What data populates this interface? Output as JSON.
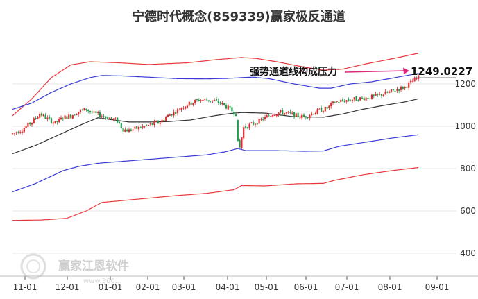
{
  "chart_data": {
    "type": "candlestick",
    "title": "宁德时代概念(859339)赢家极反通道",
    "y_ticks": [
      400,
      600,
      800,
      1000,
      1200
    ],
    "ylim": [
      380,
      1370
    ],
    "x_ticks": [
      "11-01",
      "12-01",
      "01-01",
      "02-01",
      "03-01",
      "04-01",
      "05-01",
      "06-01",
      "07-01",
      "08-01",
      "09-01"
    ],
    "grid": true,
    "annotation": {
      "text": "强势通道线构成压力",
      "last_value": "1249.0227"
    },
    "watermark": {
      "text": "赢家江恩软件",
      "url": "www.360..."
    },
    "colors": {
      "up": "#e0292b",
      "down": "#1f9a4c",
      "outer_band": "#e8373b",
      "inner_band": "#3a3ad6",
      "mid_line": "#333333",
      "arrow": "#e0287a",
      "grid": "#e6e6e6"
    },
    "price_anchors": [
      [
        0,
        965
      ],
      [
        5,
        985
      ],
      [
        10,
        1020
      ],
      [
        14,
        1060
      ],
      [
        18,
        1035
      ],
      [
        22,
        1015
      ],
      [
        26,
        1040
      ],
      [
        30,
        1050
      ],
      [
        34,
        1070
      ],
      [
        38,
        1080
      ],
      [
        42,
        1060
      ],
      [
        46,
        1050
      ],
      [
        50,
        1040
      ],
      [
        54,
        1025
      ],
      [
        57,
        985
      ],
      [
        60,
        980
      ],
      [
        64,
        990
      ],
      [
        68,
        1000
      ],
      [
        72,
        1010
      ],
      [
        76,
        1020
      ],
      [
        80,
        1050
      ],
      [
        84,
        1070
      ],
      [
        88,
        1095
      ],
      [
        92,
        1110
      ],
      [
        96,
        1125
      ],
      [
        100,
        1125
      ],
      [
        104,
        1120
      ],
      [
        108,
        1105
      ],
      [
        112,
        1080
      ],
      [
        115,
        1060
      ],
      [
        116,
        975
      ],
      [
        117,
        900
      ],
      [
        119,
        995
      ],
      [
        122,
        1005
      ],
      [
        126,
        1020
      ],
      [
        130,
        1040
      ],
      [
        134,
        1060
      ],
      [
        138,
        1065
      ],
      [
        142,
        1060
      ],
      [
        146,
        1050
      ],
      [
        150,
        1045
      ],
      [
        154,
        1060
      ],
      [
        158,
        1075
      ],
      [
        162,
        1085
      ],
      [
        166,
        1115
      ],
      [
        170,
        1120
      ],
      [
        174,
        1125
      ],
      [
        178,
        1130
      ],
      [
        182,
        1135
      ],
      [
        186,
        1140
      ],
      [
        190,
        1150
      ],
      [
        194,
        1160
      ],
      [
        198,
        1175
      ],
      [
        202,
        1185
      ],
      [
        206,
        1212
      ],
      [
        209,
        1230
      ]
    ],
    "mid_line": [
      [
        0,
        870
      ],
      [
        12,
        910
      ],
      [
        24,
        960
      ],
      [
        36,
        1010
      ],
      [
        44,
        1040
      ],
      [
        52,
        1030
      ],
      [
        60,
        1020
      ],
      [
        70,
        1020
      ],
      [
        80,
        1022
      ],
      [
        92,
        1030
      ],
      [
        104,
        1050
      ],
      [
        112,
        1060
      ],
      [
        118,
        1065
      ],
      [
        130,
        1062
      ],
      [
        145,
        1045
      ],
      [
        160,
        1043
      ],
      [
        170,
        1058
      ],
      [
        180,
        1080
      ],
      [
        192,
        1100
      ],
      [
        202,
        1115
      ],
      [
        209,
        1130
      ]
    ],
    "inner_upper": [
      [
        0,
        1080
      ],
      [
        10,
        1110
      ],
      [
        20,
        1160
      ],
      [
        30,
        1200
      ],
      [
        40,
        1230
      ],
      [
        46,
        1240
      ],
      [
        56,
        1238
      ],
      [
        70,
        1232
      ],
      [
        85,
        1225
      ],
      [
        100,
        1224
      ],
      [
        110,
        1226
      ],
      [
        118,
        1230
      ],
      [
        124,
        1232
      ],
      [
        132,
        1225
      ],
      [
        145,
        1200
      ],
      [
        158,
        1180
      ],
      [
        164,
        1180
      ],
      [
        174,
        1200
      ],
      [
        185,
        1210
      ],
      [
        197,
        1230
      ],
      [
        209,
        1250
      ]
    ],
    "inner_lower": [
      [
        0,
        690
      ],
      [
        12,
        730
      ],
      [
        26,
        790
      ],
      [
        34,
        810
      ],
      [
        44,
        825
      ],
      [
        58,
        835
      ],
      [
        72,
        845
      ],
      [
        86,
        855
      ],
      [
        100,
        865
      ],
      [
        110,
        880
      ],
      [
        116,
        895
      ],
      [
        120,
        885
      ],
      [
        135,
        885
      ],
      [
        150,
        882
      ],
      [
        160,
        883
      ],
      [
        168,
        905
      ],
      [
        182,
        925
      ],
      [
        196,
        945
      ],
      [
        209,
        960
      ]
    ],
    "outer_upper": [
      [
        0,
        1050
      ],
      [
        10,
        1130
      ],
      [
        20,
        1230
      ],
      [
        30,
        1290
      ],
      [
        40,
        1305
      ],
      [
        55,
        1300
      ],
      [
        70,
        1292
      ],
      [
        90,
        1300
      ],
      [
        105,
        1315
      ],
      [
        118,
        1325
      ],
      [
        126,
        1320
      ],
      [
        136,
        1305
      ],
      [
        150,
        1280
      ],
      [
        160,
        1265
      ],
      [
        170,
        1270
      ],
      [
        182,
        1295
      ],
      [
        196,
        1320
      ],
      [
        209,
        1345
      ]
    ],
    "outer_lower": [
      [
        0,
        555
      ],
      [
        15,
        557
      ],
      [
        28,
        565
      ],
      [
        38,
        600
      ],
      [
        46,
        640
      ],
      [
        58,
        650
      ],
      [
        70,
        660
      ],
      [
        84,
        672
      ],
      [
        100,
        683
      ],
      [
        114,
        700
      ],
      [
        118,
        720
      ],
      [
        130,
        718
      ],
      [
        146,
        728
      ],
      [
        160,
        730
      ],
      [
        166,
        745
      ],
      [
        180,
        770
      ],
      [
        195,
        790
      ],
      [
        209,
        805
      ]
    ]
  }
}
